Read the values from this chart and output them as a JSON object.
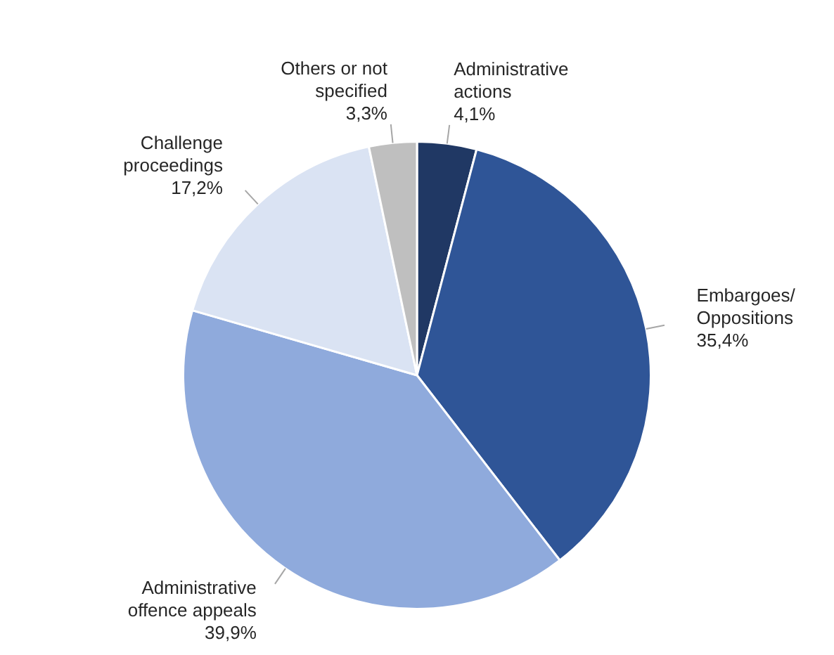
{
  "chart_data": {
    "type": "pie",
    "categories": [
      "Administrative actions",
      "Embargoes/ Oppositions",
      "Administrative offence appeals",
      "Challenge proceedings",
      "Others or not specified"
    ],
    "values": [
      4.1,
      35.4,
      39.9,
      17.2,
      3.3
    ],
    "colors": [
      "#203864",
      "#2f5597",
      "#8faadc",
      "#dae3f3",
      "#bfbfbf"
    ],
    "value_labels": [
      "4,1%",
      "35,4%",
      "39,9%",
      "17,2%",
      "3,3%"
    ],
    "legend": false
  }
}
